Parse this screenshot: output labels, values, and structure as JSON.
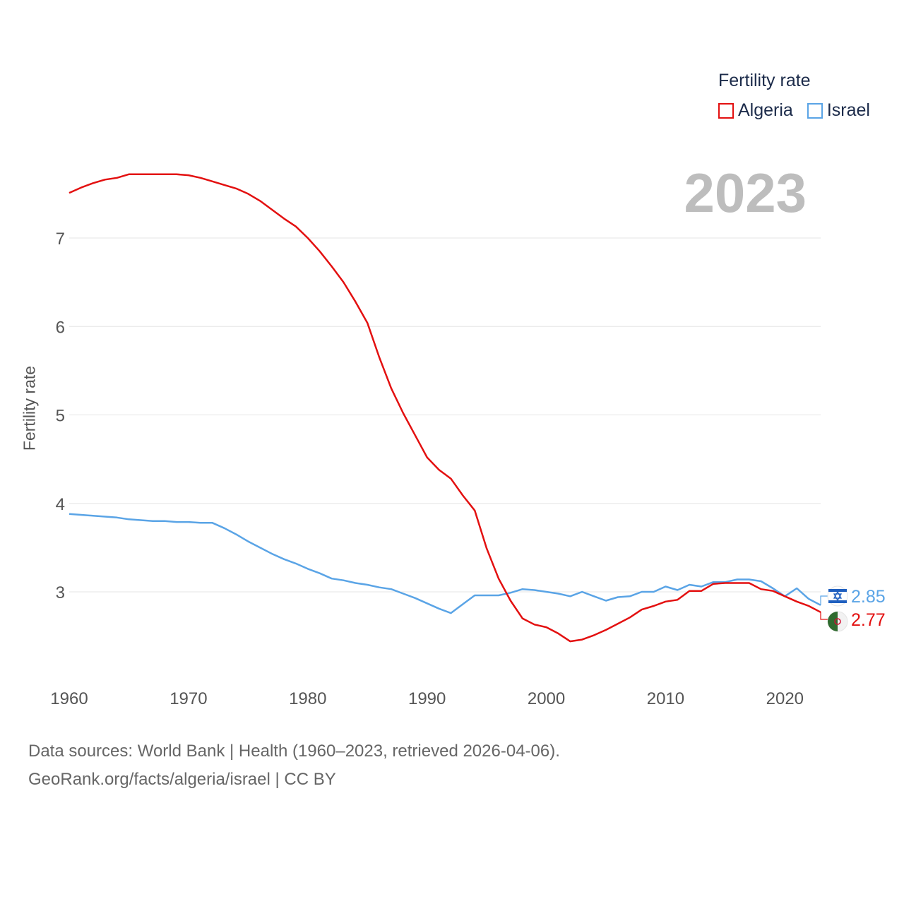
{
  "legend": {
    "title": "Fertility rate",
    "items": [
      {
        "name": "Algeria",
        "color": "#e31010"
      },
      {
        "name": "Israel",
        "color": "#5aa4e6"
      }
    ]
  },
  "year_label": "2023",
  "footer": {
    "line1": "Data sources: World Bank | Health (1960–2023, retrieved 2026-04-06).",
    "line2": "GeoRank.org/facts/algeria/israel | CC BY"
  },
  "chart_data": {
    "type": "line",
    "title": "Fertility rate",
    "ylabel": "Fertility rate",
    "xlabel": "",
    "xlim": [
      1960,
      2023
    ],
    "ylim": [
      2.0,
      8.0
    ],
    "grid": true,
    "x_ticks": [
      1960,
      1970,
      1980,
      1990,
      2000,
      2010,
      2020
    ],
    "y_ticks": [
      3,
      4,
      5,
      6,
      7
    ],
    "legend_position": "top-right",
    "x": [
      1960,
      1961,
      1962,
      1963,
      1964,
      1965,
      1966,
      1967,
      1968,
      1969,
      1970,
      1971,
      1972,
      1973,
      1974,
      1975,
      1976,
      1977,
      1978,
      1979,
      1980,
      1981,
      1982,
      1983,
      1984,
      1985,
      1986,
      1987,
      1988,
      1989,
      1990,
      1991,
      1992,
      1993,
      1994,
      1995,
      1996,
      1997,
      1998,
      1999,
      2000,
      2001,
      2002,
      2003,
      2004,
      2005,
      2006,
      2007,
      2008,
      2009,
      2010,
      2011,
      2012,
      2013,
      2014,
      2015,
      2016,
      2017,
      2018,
      2019,
      2020,
      2021,
      2022,
      2023
    ],
    "series": [
      {
        "name": "Algeria",
        "color": "#e31010",
        "end_label": "2.77",
        "values": [
          7.51,
          7.57,
          7.62,
          7.66,
          7.68,
          7.72,
          7.72,
          7.72,
          7.72,
          7.72,
          7.71,
          7.68,
          7.64,
          7.6,
          7.56,
          7.5,
          7.42,
          7.32,
          7.22,
          7.13,
          7.0,
          6.85,
          6.68,
          6.5,
          6.28,
          6.04,
          5.65,
          5.3,
          5.02,
          4.77,
          4.52,
          4.38,
          4.28,
          4.09,
          3.92,
          3.49,
          3.15,
          2.9,
          2.7,
          2.63,
          2.6,
          2.53,
          2.44,
          2.46,
          2.51,
          2.57,
          2.64,
          2.71,
          2.8,
          2.84,
          2.89,
          2.91,
          3.01,
          3.01,
          3.09,
          3.1,
          3.1,
          3.1,
          3.03,
          3.01,
          2.95,
          2.89,
          2.84,
          2.77
        ]
      },
      {
        "name": "Israel",
        "color": "#5aa4e6",
        "end_label": "2.85",
        "values": [
          3.88,
          3.87,
          3.86,
          3.85,
          3.84,
          3.82,
          3.81,
          3.8,
          3.8,
          3.79,
          3.79,
          3.78,
          3.78,
          3.72,
          3.65,
          3.57,
          3.5,
          3.43,
          3.37,
          3.32,
          3.26,
          3.21,
          3.15,
          3.13,
          3.1,
          3.08,
          3.05,
          3.03,
          2.98,
          2.93,
          2.87,
          2.81,
          2.76,
          2.86,
          2.96,
          2.96,
          2.96,
          2.99,
          3.03,
          3.02,
          3.0,
          2.98,
          2.95,
          3.0,
          2.95,
          2.9,
          2.94,
          2.95,
          3.0,
          3.0,
          3.06,
          3.02,
          3.08,
          3.06,
          3.11,
          3.11,
          3.14,
          3.14,
          3.12,
          3.04,
          2.95,
          3.04,
          2.92,
          2.85
        ]
      }
    ]
  }
}
